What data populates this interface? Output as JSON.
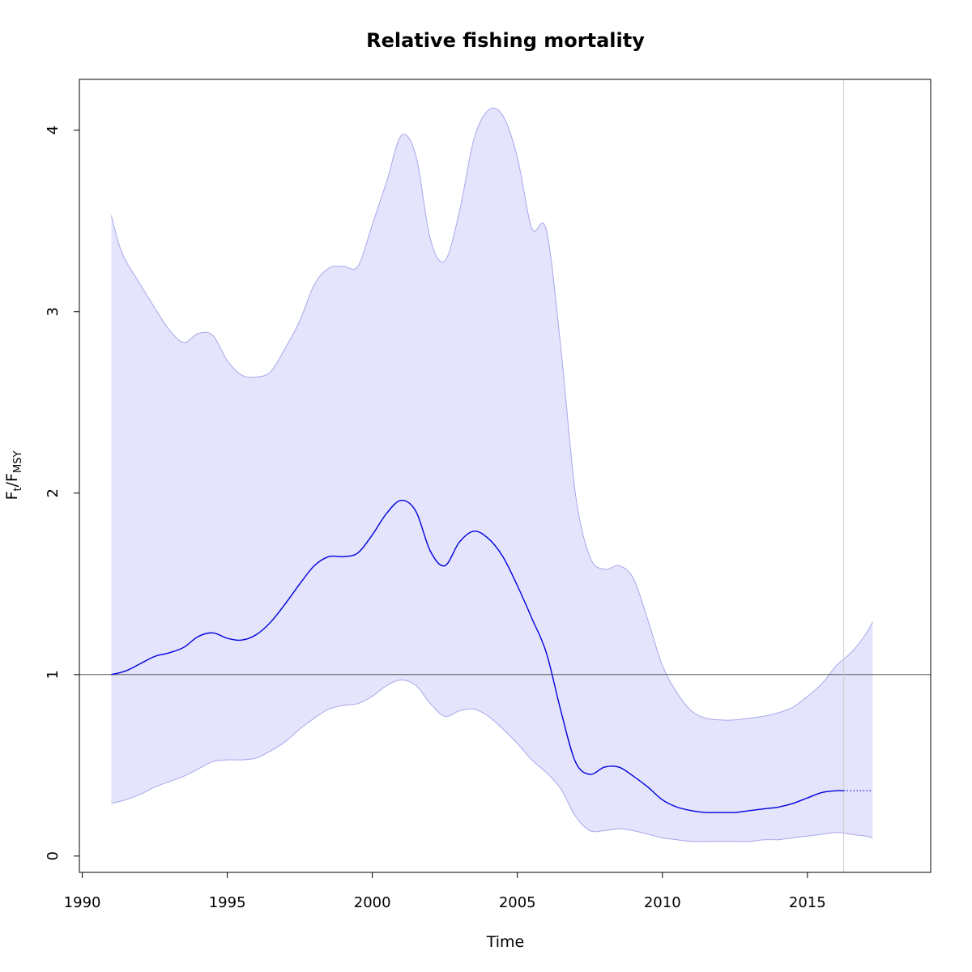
{
  "chart_data": {
    "type": "line",
    "title": "Relative fishing mortality",
    "xlabel": "Time",
    "ylabel": {
      "main": "F",
      "sub1": "t",
      "sep": "/F",
      "sub2": "MSY"
    },
    "xlim": [
      1989.9,
      2019.25
    ],
    "ylim": [
      -0.09,
      4.28
    ],
    "x_ticks": [
      1990,
      1995,
      2000,
      2005,
      2010,
      2015
    ],
    "x_tick_labels": [
      "1990",
      "1995",
      "2000",
      "2005",
      "2010",
      "2015"
    ],
    "y_ticks": [
      0,
      1,
      2,
      3,
      4
    ],
    "y_tick_labels": [
      "0",
      "1",
      "2",
      "3",
      "4"
    ],
    "reference_line_y": 1,
    "current_time_x": 2016.25,
    "colors": {
      "line": "#0000dd",
      "band_fill": "#e4e4fc",
      "band_edge": "#a8a8ec",
      "reference": "#555555",
      "vertical": "#cccccc"
    },
    "series": [
      {
        "role": "estimate",
        "style": "solid",
        "x": [
          1991,
          1991.5,
          1992,
          1992.5,
          1993,
          1993.5,
          1994,
          1994.5,
          1995,
          1995.5,
          1996,
          1996.5,
          1997,
          1997.5,
          1998,
          1998.5,
          1999,
          1999.5,
          2000,
          2000.5,
          2001,
          2001.5,
          2002,
          2002.5,
          2003,
          2003.5,
          2004,
          2004.5,
          2005,
          2005.5,
          2006,
          2006.5,
          2007,
          2007.5,
          2008,
          2008.5,
          2009,
          2009.5,
          2010,
          2010.5,
          2011,
          2011.5,
          2012,
          2012.5,
          2013,
          2013.5,
          2014,
          2014.5,
          2015,
          2015.5,
          2016,
          2016.25
        ],
        "values": [
          1.0,
          1.02,
          1.06,
          1.1,
          1.12,
          1.15,
          1.21,
          1.23,
          1.2,
          1.19,
          1.22,
          1.29,
          1.39,
          1.5,
          1.6,
          1.65,
          1.65,
          1.67,
          1.77,
          1.89,
          1.96,
          1.9,
          1.68,
          1.6,
          1.73,
          1.79,
          1.75,
          1.65,
          1.49,
          1.31,
          1.12,
          0.8,
          0.52,
          0.45,
          0.49,
          0.49,
          0.44,
          0.38,
          0.31,
          0.27,
          0.25,
          0.24,
          0.24,
          0.24,
          0.25,
          0.26,
          0.27,
          0.29,
          0.32,
          0.35,
          0.36,
          0.36
        ]
      },
      {
        "role": "prediction",
        "style": "dotted",
        "x": [
          2016.25,
          2017.25
        ],
        "values": [
          0.36,
          0.36
        ]
      },
      {
        "role": "upper_ci",
        "x": [
          1991,
          1991.25,
          1991.5,
          1992,
          1992.5,
          1993,
          1993.5,
          1994,
          1994.5,
          1995,
          1995.5,
          1996,
          1996.5,
          1997,
          1997.5,
          1998,
          1998.5,
          1999,
          1999.5,
          2000,
          2000.5,
          2001,
          2001.5,
          2002,
          2002.5,
          2003,
          2003.5,
          2004,
          2004.5,
          2005,
          2005.5,
          2006,
          2006.5,
          2007,
          2007.5,
          2008,
          2008.5,
          2009,
          2009.5,
          2010,
          2010.5,
          2011,
          2011.5,
          2012,
          2012.5,
          2013,
          2013.5,
          2014,
          2014.5,
          2015,
          2015.5,
          2016,
          2016.5,
          2017,
          2017.25
        ],
        "values": [
          3.53,
          3.38,
          3.28,
          3.15,
          3.02,
          2.9,
          2.83,
          2.88,
          2.87,
          2.73,
          2.65,
          2.64,
          2.67,
          2.8,
          2.95,
          3.15,
          3.24,
          3.25,
          3.25,
          3.48,
          3.72,
          3.97,
          3.86,
          3.4,
          3.28,
          3.55,
          3.95,
          4.11,
          4.08,
          3.85,
          3.46,
          3.45,
          2.8,
          2.0,
          1.65,
          1.58,
          1.6,
          1.53,
          1.3,
          1.05,
          0.9,
          0.8,
          0.76,
          0.75,
          0.75,
          0.76,
          0.77,
          0.79,
          0.82,
          0.88,
          0.95,
          1.05,
          1.12,
          1.22,
          1.29
        ]
      },
      {
        "role": "lower_ci",
        "x": [
          1991,
          1991.5,
          1992,
          1992.5,
          1993,
          1993.5,
          1994,
          1994.5,
          1995,
          1995.5,
          1996,
          1996.5,
          1997,
          1997.5,
          1998,
          1998.5,
          1999,
          1999.5,
          2000,
          2000.5,
          2001,
          2001.5,
          2002,
          2002.5,
          2003,
          2003.5,
          2004,
          2004.5,
          2005,
          2005.5,
          2006,
          2006.5,
          2007,
          2007.5,
          2008,
          2008.5,
          2009,
          2009.5,
          2010,
          2010.5,
          2011,
          2011.5,
          2012,
          2012.5,
          2013,
          2013.5,
          2014,
          2014.5,
          2015,
          2015.5,
          2016,
          2016.5,
          2017,
          2017.25
        ],
        "values": [
          0.29,
          0.31,
          0.34,
          0.38,
          0.41,
          0.44,
          0.48,
          0.52,
          0.53,
          0.53,
          0.54,
          0.58,
          0.63,
          0.7,
          0.76,
          0.81,
          0.83,
          0.84,
          0.88,
          0.94,
          0.97,
          0.94,
          0.84,
          0.77,
          0.8,
          0.81,
          0.77,
          0.7,
          0.62,
          0.53,
          0.46,
          0.37,
          0.22,
          0.14,
          0.14,
          0.15,
          0.14,
          0.12,
          0.1,
          0.09,
          0.08,
          0.08,
          0.08,
          0.08,
          0.08,
          0.09,
          0.09,
          0.1,
          0.11,
          0.12,
          0.13,
          0.12,
          0.11,
          0.1
        ]
      }
    ]
  }
}
